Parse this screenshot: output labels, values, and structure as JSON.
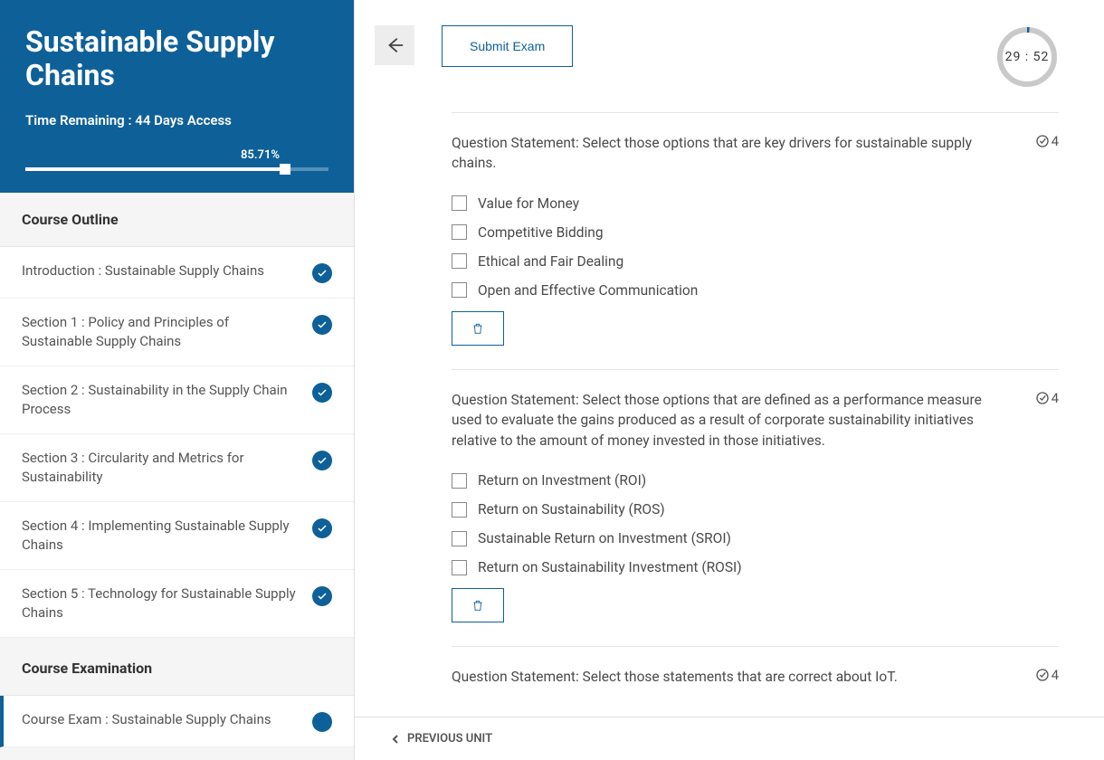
{
  "sidebar": {
    "title": "Sustainable Supply Chains",
    "time_remaining": "Time Remaining : 44 Days Access",
    "progress_pct_label": "85.71%",
    "progress_pct": 85.71,
    "header_bg": "#0e6099",
    "outline_heading": "Course Outline",
    "exam_heading": "Course Examination",
    "items": [
      {
        "label": "Introduction : Sustainable Supply Chains",
        "status": "done"
      },
      {
        "label": "Section 1 : Policy and Principles of Sustainable Supply Chains",
        "status": "done"
      },
      {
        "label": "Section 2 : Sustainability in the Supply Chain Process",
        "status": "done"
      },
      {
        "label": "Section 3 : Circularity and Metrics for Sustainability",
        "status": "done"
      },
      {
        "label": "Section 4 : Implementing Sustainable Supply Chains",
        "status": "done"
      },
      {
        "label": "Section 5 : Technology for Sustainable Supply Chains",
        "status": "done"
      }
    ],
    "exam_items": [
      {
        "label": "Course Exam : Sustainable Supply Chains",
        "status": "current"
      }
    ]
  },
  "exam": {
    "submit_label": "Submit Exam",
    "timer": {
      "minutes": "29",
      "seconds": "52",
      "ring_bg": "#c9c9c9",
      "ring_fg": "#0e6099"
    },
    "score_per_q": "4",
    "questions": [
      {
        "statement": "Question Statement: Select those options that are key drivers for sustainable supply chains.",
        "options": [
          "Value for Money",
          "Competitive Bidding",
          "Ethical and Fair Dealing",
          "Open and Effective Communication"
        ]
      },
      {
        "statement": "Question Statement: Select those options that are defined as a performance measure used to evaluate the gains produced as a result of corporate sustainability initiatives relative to the amount of money invested in those initiatives.",
        "options": [
          "Return on Investment (ROI)",
          "Return on Sustainability (ROS)",
          "Sustainable Return on Investment (SROI)",
          "Return on Sustainability Investment (ROSI)"
        ]
      },
      {
        "statement": "Question Statement: Select those statements that are correct about IoT.",
        "options": []
      }
    ]
  },
  "footer": {
    "prev_label": "PREVIOUS UNIT"
  },
  "colors": {
    "accent": "#0e6099",
    "border": "#e5e5e5",
    "text": "#4a4a4a"
  }
}
